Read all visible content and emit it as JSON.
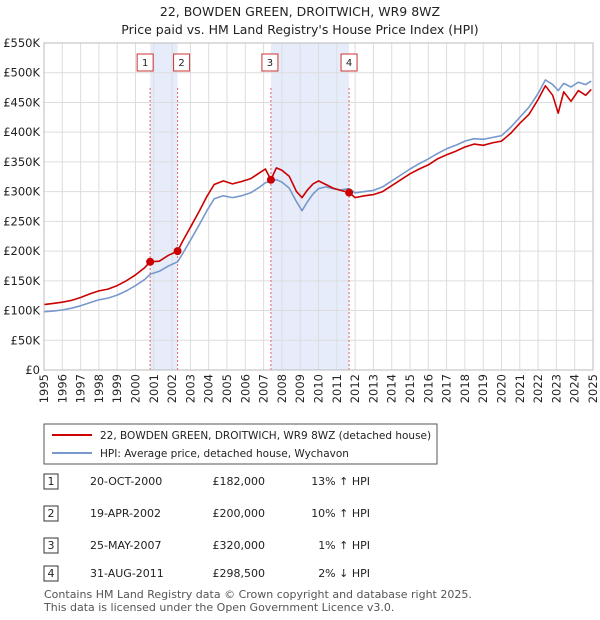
{
  "chart_data": {
    "type": "line",
    "title": "22, BOWDEN GREEN, DROITWICH, WR9 8WZ",
    "subtitle": "Price paid vs. HM Land Registry's House Price Index (HPI)",
    "xlim": [
      1995,
      2025
    ],
    "ylim": [
      0,
      550000
    ],
    "x_ticks": [
      "1995",
      "1996",
      "1997",
      "1998",
      "1999",
      "2000",
      "2001",
      "2002",
      "2003",
      "2004",
      "2005",
      "2006",
      "2007",
      "2008",
      "2009",
      "2010",
      "2011",
      "2012",
      "2013",
      "2014",
      "2015",
      "2016",
      "2017",
      "2018",
      "2019",
      "2020",
      "2021",
      "2022",
      "2023",
      "2024",
      "2025"
    ],
    "y_ticks": [
      {
        "value": 0,
        "label": "£0"
      },
      {
        "value": 50000,
        "label": "£50K"
      },
      {
        "value": 100000,
        "label": "£100K"
      },
      {
        "value": 150000,
        "label": "£150K"
      },
      {
        "value": 200000,
        "label": "£200K"
      },
      {
        "value": 250000,
        "label": "£250K"
      },
      {
        "value": 300000,
        "label": "£300K"
      },
      {
        "value": 350000,
        "label": "£350K"
      },
      {
        "value": 400000,
        "label": "£400K"
      },
      {
        "value": 450000,
        "label": "£450K"
      },
      {
        "value": 500000,
        "label": "£500K"
      },
      {
        "value": 550000,
        "label": "£550K"
      }
    ],
    "shaded_ranges": [
      [
        2000.8,
        2002.3
      ],
      [
        2007.4,
        2011.67
      ]
    ],
    "series": [
      {
        "name": "22, BOWDEN GREEN, DROITWICH, WR9 8WZ (detached house)",
        "color": "#cc0000",
        "points": [
          [
            1995.0,
            110000
          ],
          [
            1995.5,
            112000
          ],
          [
            1996.0,
            114000
          ],
          [
            1996.5,
            117000
          ],
          [
            1997.0,
            122000
          ],
          [
            1997.5,
            128000
          ],
          [
            1998.0,
            133000
          ],
          [
            1998.5,
            136000
          ],
          [
            1999.0,
            142000
          ],
          [
            1999.5,
            150000
          ],
          [
            2000.0,
            160000
          ],
          [
            2000.5,
            172000
          ],
          [
            2000.8,
            182000
          ],
          [
            2001.3,
            183000
          ],
          [
            2001.8,
            193000
          ],
          [
            2002.3,
            200000
          ],
          [
            2002.6,
            218000
          ],
          [
            2003.0,
            240000
          ],
          [
            2003.5,
            268000
          ],
          [
            2003.9,
            292000
          ],
          [
            2004.3,
            312000
          ],
          [
            2004.8,
            318000
          ],
          [
            2005.3,
            313000
          ],
          [
            2005.8,
            317000
          ],
          [
            2006.3,
            322000
          ],
          [
            2006.8,
            332000
          ],
          [
            2007.1,
            338000
          ],
          [
            2007.4,
            320000
          ],
          [
            2007.7,
            340000
          ],
          [
            2008.0,
            336000
          ],
          [
            2008.4,
            326000
          ],
          [
            2008.8,
            300000
          ],
          [
            2009.1,
            290000
          ],
          [
            2009.4,
            303000
          ],
          [
            2009.7,
            313000
          ],
          [
            2010.0,
            318000
          ],
          [
            2010.4,
            312000
          ],
          [
            2010.8,
            306000
          ],
          [
            2011.2,
            302000
          ],
          [
            2011.67,
            298500
          ],
          [
            2012.0,
            290000
          ],
          [
            2012.5,
            293000
          ],
          [
            2013.0,
            295000
          ],
          [
            2013.5,
            300000
          ],
          [
            2014.0,
            310000
          ],
          [
            2014.5,
            320000
          ],
          [
            2015.0,
            330000
          ],
          [
            2015.5,
            338000
          ],
          [
            2016.0,
            345000
          ],
          [
            2016.5,
            355000
          ],
          [
            2017.0,
            362000
          ],
          [
            2017.5,
            368000
          ],
          [
            2018.0,
            375000
          ],
          [
            2018.5,
            380000
          ],
          [
            2019.0,
            378000
          ],
          [
            2019.5,
            382000
          ],
          [
            2020.0,
            385000
          ],
          [
            2020.5,
            398000
          ],
          [
            2021.0,
            415000
          ],
          [
            2021.5,
            430000
          ],
          [
            2022.0,
            455000
          ],
          [
            2022.4,
            478000
          ],
          [
            2022.8,
            462000
          ],
          [
            2023.1,
            432000
          ],
          [
            2023.4,
            468000
          ],
          [
            2023.8,
            452000
          ],
          [
            2024.2,
            470000
          ],
          [
            2024.6,
            462000
          ],
          [
            2024.9,
            472000
          ]
        ]
      },
      {
        "name": "HPI: Average price, detached house, Wychavon",
        "color": "#7799cc",
        "points": [
          [
            1995.0,
            98000
          ],
          [
            1995.5,
            99000
          ],
          [
            1996.0,
            101000
          ],
          [
            1996.5,
            104000
          ],
          [
            1997.0,
            108000
          ],
          [
            1997.5,
            113000
          ],
          [
            1998.0,
            118000
          ],
          [
            1998.5,
            121000
          ],
          [
            1999.0,
            126000
          ],
          [
            1999.5,
            133000
          ],
          [
            2000.0,
            142000
          ],
          [
            2000.5,
            152000
          ],
          [
            2000.8,
            161000
          ],
          [
            2001.3,
            166000
          ],
          [
            2001.8,
            175000
          ],
          [
            2002.3,
            182000
          ],
          [
            2002.6,
            197000
          ],
          [
            2003.0,
            218000
          ],
          [
            2003.5,
            245000
          ],
          [
            2003.9,
            268000
          ],
          [
            2004.3,
            288000
          ],
          [
            2004.8,
            293000
          ],
          [
            2005.3,
            290000
          ],
          [
            2005.8,
            293000
          ],
          [
            2006.3,
            298000
          ],
          [
            2006.8,
            308000
          ],
          [
            2007.1,
            315000
          ],
          [
            2007.4,
            317000
          ],
          [
            2007.7,
            320000
          ],
          [
            2008.0,
            316000
          ],
          [
            2008.4,
            306000
          ],
          [
            2008.8,
            283000
          ],
          [
            2009.1,
            268000
          ],
          [
            2009.4,
            283000
          ],
          [
            2009.7,
            296000
          ],
          [
            2010.0,
            305000
          ],
          [
            2010.4,
            308000
          ],
          [
            2010.8,
            305000
          ],
          [
            2011.2,
            303000
          ],
          [
            2011.67,
            305000
          ],
          [
            2012.0,
            298000
          ],
          [
            2012.5,
            300000
          ],
          [
            2013.0,
            302000
          ],
          [
            2013.5,
            308000
          ],
          [
            2014.0,
            318000
          ],
          [
            2014.5,
            328000
          ],
          [
            2015.0,
            338000
          ],
          [
            2015.5,
            347000
          ],
          [
            2016.0,
            355000
          ],
          [
            2016.5,
            364000
          ],
          [
            2017.0,
            372000
          ],
          [
            2017.5,
            378000
          ],
          [
            2018.0,
            385000
          ],
          [
            2018.5,
            389000
          ],
          [
            2019.0,
            388000
          ],
          [
            2019.5,
            391000
          ],
          [
            2020.0,
            394000
          ],
          [
            2020.5,
            408000
          ],
          [
            2021.0,
            425000
          ],
          [
            2021.5,
            442000
          ],
          [
            2022.0,
            465000
          ],
          [
            2022.4,
            488000
          ],
          [
            2022.8,
            480000
          ],
          [
            2023.1,
            470000
          ],
          [
            2023.4,
            482000
          ],
          [
            2023.8,
            476000
          ],
          [
            2024.2,
            484000
          ],
          [
            2024.6,
            480000
          ],
          [
            2024.9,
            486000
          ]
        ]
      }
    ],
    "sales": [
      {
        "id": "1",
        "x": 2000.8,
        "price": 182000
      },
      {
        "id": "2",
        "x": 2002.3,
        "price": 200000
      },
      {
        "id": "3",
        "x": 2007.4,
        "price": 320000
      },
      {
        "id": "4",
        "x": 2011.67,
        "price": 298500
      }
    ]
  },
  "legend": {
    "property_label": "22, BOWDEN GREEN, DROITWICH, WR9 8WZ (detached house)",
    "hpi_label": "HPI: Average price, detached house, Wychavon",
    "property_color": "#cc0000",
    "hpi_color": "#7799cc"
  },
  "transactions": [
    {
      "id": "1",
      "date": "20-OCT-2000",
      "price": "£182,000",
      "hpi": "13% ↑ HPI"
    },
    {
      "id": "2",
      "date": "19-APR-2002",
      "price": "£200,000",
      "hpi": "10% ↑ HPI"
    },
    {
      "id": "3",
      "date": "25-MAY-2007",
      "price": "£320,000",
      "hpi": "1% ↑ HPI"
    },
    {
      "id": "4",
      "date": "31-AUG-2011",
      "price": "£298,500",
      "hpi": "2% ↓ HPI"
    }
  ],
  "footer": {
    "line1": "Contains HM Land Registry data © Crown copyright and database right 2025.",
    "line2": "This data is licensed under the Open Government Licence v3.0."
  }
}
